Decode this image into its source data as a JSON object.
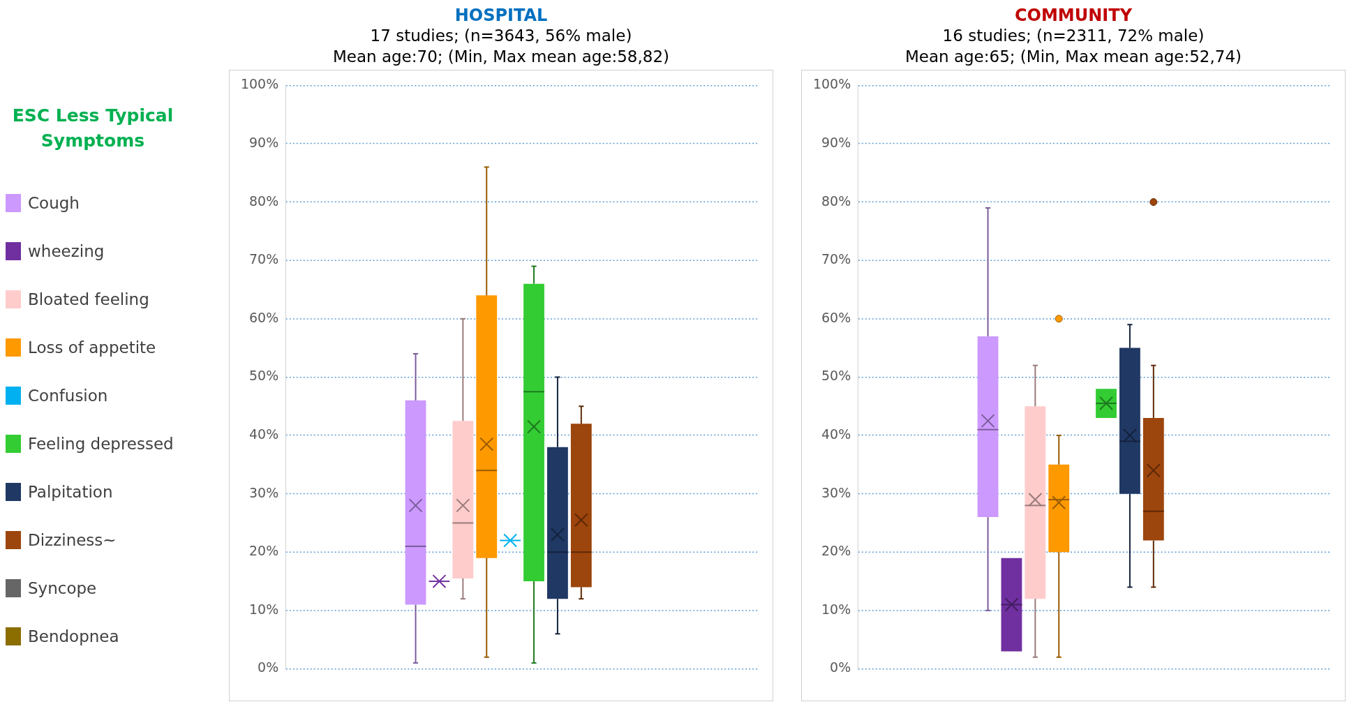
{
  "chart_data": [
    {
      "type": "box",
      "title": "HOSPITAL",
      "subtitle": "17 studies; (n=3643, 56% male)\nMean age:70; (Min, Max mean age:58,82)",
      "legend_title": "ESC Less Typical Symptoms",
      "legend": "left",
      "grid": "y",
      "categories": [
        null
      ],
      "ylim": [
        0,
        100
      ],
      "yticks": [
        {
          "value": 0,
          "label": "0%"
        },
        {
          "value": 10,
          "label": "10%"
        },
        {
          "value": 20,
          "label": "20%"
        },
        {
          "value": 30,
          "label": "30%"
        },
        {
          "value": 40,
          "label": "40%"
        },
        {
          "value": 50,
          "label": "50%"
        },
        {
          "value": 60,
          "label": "60%"
        },
        {
          "value": 70,
          "label": "70%"
        },
        {
          "value": 80,
          "label": "80%"
        },
        {
          "value": 90,
          "label": "90%"
        },
        {
          "value": 100,
          "label": "100%"
        }
      ],
      "series": [
        {
          "name": "Cough",
          "color": "#cc99ff",
          "boxes": [
            {
              "low": 1,
              "q1": 11,
              "median": 21,
              "q3": 46,
              "high": 54,
              "mean": 28
            }
          ]
        },
        {
          "name": "wheezing",
          "color": "#7030a0",
          "boxes": [
            {
              "low": 15,
              "q1": 15,
              "median": 15,
              "q3": 15,
              "high": 15,
              "mean": 15
            }
          ]
        },
        {
          "name": "Bloated feeling",
          "color": "#ffcccc",
          "boxes": [
            {
              "low": 12,
              "q1": 15.5,
              "median": 25,
              "q3": 42.5,
              "high": 60,
              "mean": 28
            }
          ]
        },
        {
          "name": "Loss of appetite",
          "color": "#ff9900",
          "boxes": [
            {
              "low": 2,
              "q1": 19,
              "median": 34,
              "q3": 64,
              "high": 86,
              "mean": 38.5
            }
          ]
        },
        {
          "name": "Confusion",
          "color": "#00b0f0",
          "boxes": [
            {
              "low": 22,
              "q1": 22,
              "median": 22,
              "q3": 22,
              "high": 22,
              "mean": 22
            }
          ]
        },
        {
          "name": "Feeling depressed",
          "color": "#33cc33",
          "boxes": [
            {
              "low": 1,
              "q1": 15,
              "median": 47.5,
              "q3": 66,
              "high": 69,
              "mean": 41.5
            }
          ]
        },
        {
          "name": "Palpitation",
          "color": "#203864",
          "boxes": [
            {
              "low": 6,
              "q1": 12,
              "median": 20,
              "q3": 38,
              "high": 50,
              "mean": 23
            }
          ]
        },
        {
          "name": "Dizziness~",
          "color": "#9c450c",
          "boxes": [
            {
              "low": 12,
              "q1": 14,
              "median": 20,
              "q3": 42,
              "high": 45,
              "mean": 25.5
            }
          ]
        },
        {
          "name": "Syncope",
          "color": "#666666",
          "boxes": [
            null
          ]
        },
        {
          "name": "Bendopnea",
          "color": "#8c6d00",
          "boxes": [
            null
          ]
        }
      ]
    },
    {
      "type": "box",
      "title": "COMMUNITY",
      "subtitle": "16 studies; (n=2311, 72% male)\nMean age:65; (Min, Max mean age:52,74)",
      "grid": "y",
      "categories": [
        null
      ],
      "ylim": [
        0,
        100
      ],
      "yticks": [
        {
          "value": 0,
          "label": "0%"
        },
        {
          "value": 10,
          "label": "10%"
        },
        {
          "value": 20,
          "label": "20%"
        },
        {
          "value": 30,
          "label": "30%"
        },
        {
          "value": 40,
          "label": "40%"
        },
        {
          "value": 50,
          "label": "50%"
        },
        {
          "value": 60,
          "label": "60%"
        },
        {
          "value": 70,
          "label": "70%"
        },
        {
          "value": 80,
          "label": "80%"
        },
        {
          "value": 90,
          "label": "90%"
        },
        {
          "value": 100,
          "label": "100%"
        }
      ],
      "series": [
        {
          "color": "#cc99ff",
          "boxes": [
            {
              "low": 10,
              "q1": 26,
              "median": 41,
              "q3": 57,
              "high": 79,
              "mean": 42.5
            }
          ]
        },
        {
          "color": "#7030a0",
          "boxes": [
            {
              "low": 3,
              "q1": 3,
              "median": 11,
              "q3": 19,
              "high": 19,
              "mean": 11
            }
          ]
        },
        {
          "color": "#ffcccc",
          "boxes": [
            {
              "low": 2,
              "q1": 12,
              "median": 28,
              "q3": 45,
              "high": 52,
              "mean": 29
            }
          ]
        },
        {
          "color": "#ff9900",
          "boxes": [
            {
              "low": 2,
              "q1": 20,
              "median": 29,
              "q3": 35,
              "high": 40,
              "mean": 28.5,
              "outliers": [
                60
              ]
            }
          ]
        },
        {
          "color": "#00b0f0",
          "boxes": [
            null
          ]
        },
        {
          "color": "#33cc33",
          "boxes": [
            {
              "low": 43,
              "q1": 43,
              "median": 45.5,
              "q3": 48,
              "high": 48,
              "mean": 45.5
            }
          ]
        },
        {
          "color": "#203864",
          "boxes": [
            {
              "low": 14,
              "q1": 30,
              "median": 39,
              "q3": 55,
              "high": 59,
              "mean": 40
            }
          ]
        },
        {
          "color": "#9c450c",
          "boxes": [
            {
              "low": 14,
              "q1": 22,
              "median": 27,
              "q3": 43,
              "high": 52,
              "mean": 34,
              "outliers": [
                80
              ]
            }
          ]
        },
        {
          "color": "#666666",
          "boxes": [
            null
          ]
        },
        {
          "color": "#8c6d00",
          "boxes": [
            null
          ]
        }
      ]
    }
  ]
}
